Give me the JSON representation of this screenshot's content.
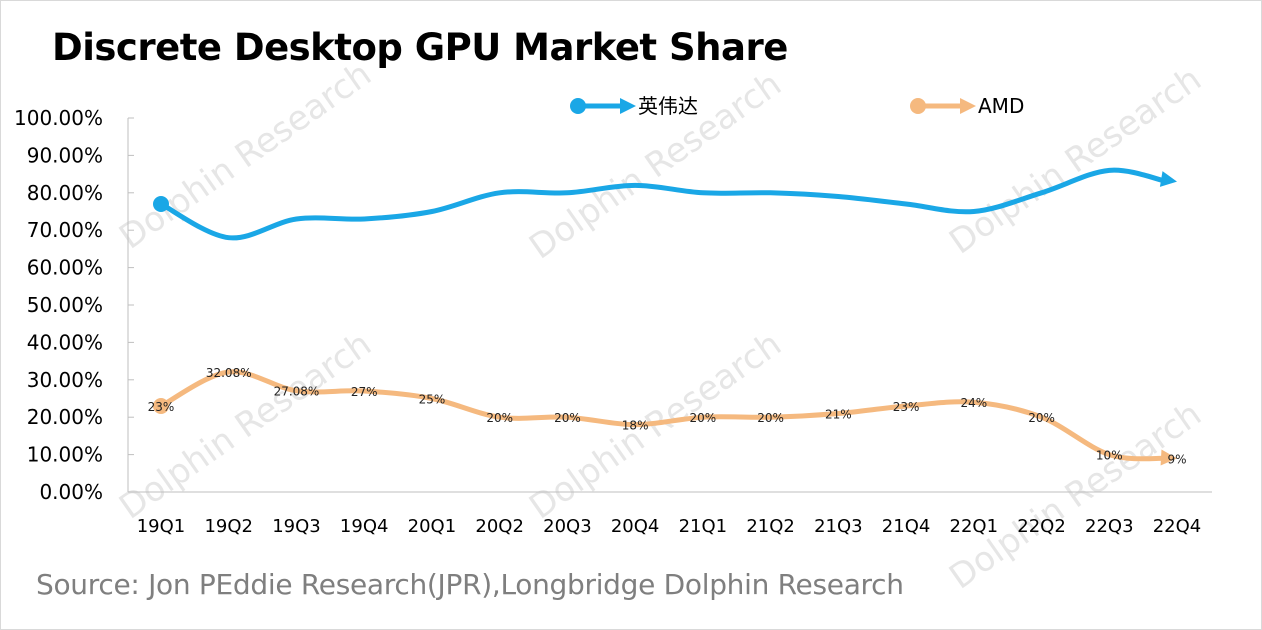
{
  "chart_data": {
    "type": "line",
    "title": "Discrete Desktop GPU Market Share",
    "source": "Source: Jon PEddie Research(JPR),Longbridge Dolphin Research",
    "watermark": "Dolphin Research",
    "categories": [
      "19Q1",
      "19Q2",
      "19Q3",
      "19Q4",
      "20Q1",
      "20Q2",
      "20Q3",
      "20Q4",
      "21Q1",
      "21Q2",
      "21Q3",
      "21Q4",
      "22Q1",
      "22Q2",
      "22Q3",
      "22Q4"
    ],
    "y_ticks": [
      "0.00%",
      "10.00%",
      "20.00%",
      "30.00%",
      "40.00%",
      "50.00%",
      "60.00%",
      "70.00%",
      "80.00%",
      "90.00%",
      "100.00%"
    ],
    "ylim": [
      0,
      100
    ],
    "grid": false,
    "legend_position": "top",
    "series": [
      {
        "name": "英伟达",
        "color": "#1aa7e6",
        "values": [
          77,
          68,
          73,
          73,
          75,
          80,
          80,
          82,
          80,
          80,
          79,
          77,
          75,
          80,
          86,
          83
        ],
        "data_labels": []
      },
      {
        "name": "AMD",
        "color": "#f5b97f",
        "values": [
          23,
          32.08,
          27.08,
          27,
          25,
          20,
          20,
          18,
          20,
          20,
          21,
          23,
          24,
          20,
          10,
          9
        ],
        "data_labels": [
          "23%",
          "32.08%",
          "27.08%",
          "27%",
          "25%",
          "20%",
          "20%",
          "18%",
          "20%",
          "20%",
          "21%",
          "23%",
          "24%",
          "20%",
          "10%",
          "9%"
        ]
      }
    ]
  }
}
